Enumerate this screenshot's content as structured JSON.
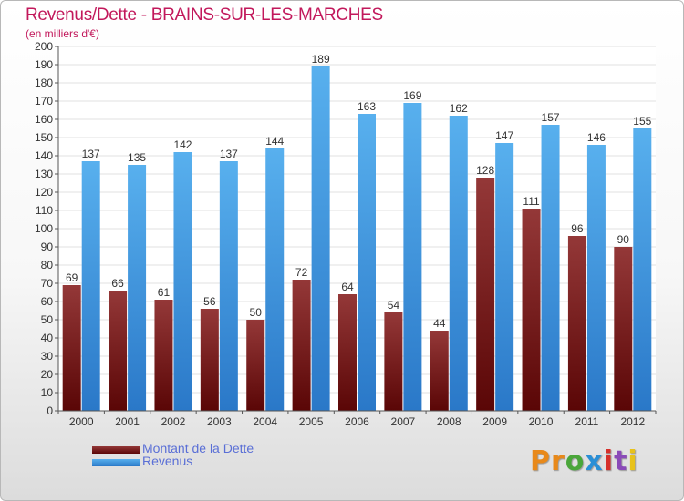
{
  "title": "Revenus/Dette - BRAINS-SUR-LES-MARCHES",
  "subtitle": "(en milliers d'€)",
  "logo": {
    "text": "Proxiti"
  },
  "colors": {
    "dette": "#6e0a0a",
    "dette_light": "#943838",
    "revenus": "#4ca6e8",
    "revenus_dark": "#2a78c8",
    "title": "#c2185b",
    "legend_text": "#5a6fd6"
  },
  "chart_data": {
    "type": "bar",
    "categories": [
      "2000",
      "2001",
      "2002",
      "2003",
      "2004",
      "2005",
      "2006",
      "2007",
      "2008",
      "2009",
      "2010",
      "2011",
      "2012"
    ],
    "series": [
      {
        "name": "Montant de la Dette",
        "values": [
          69,
          66,
          61,
          56,
          50,
          72,
          64,
          54,
          44,
          128,
          111,
          96,
          90
        ]
      },
      {
        "name": "Revenus",
        "values": [
          137,
          135,
          142,
          137,
          144,
          189,
          163,
          169,
          162,
          147,
          157,
          146,
          155
        ]
      }
    ],
    "ylim": [
      0,
      200
    ],
    "yticks": [
      0,
      10,
      20,
      30,
      40,
      50,
      60,
      70,
      80,
      90,
      100,
      110,
      120,
      130,
      140,
      150,
      160,
      170,
      180,
      190,
      200
    ],
    "grid": true,
    "legend": "bottom-left"
  }
}
